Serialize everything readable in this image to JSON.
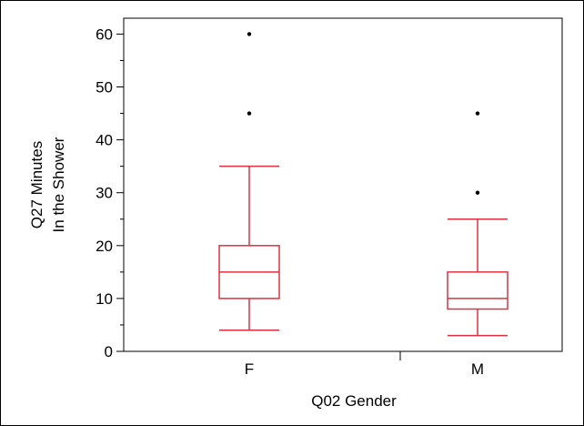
{
  "chart_data": {
    "type": "box",
    "title": "",
    "xlabel": "Q02 Gender",
    "ylabel_lines": [
      "Q27 Minutes",
      "In the Shower"
    ],
    "categories": [
      "F",
      "M"
    ],
    "y_ticks": [
      0,
      10,
      20,
      30,
      40,
      50,
      60
    ],
    "ylim": [
      0,
      63
    ],
    "grid": false,
    "colors": {
      "box": "#e0303f",
      "outlier": "#000000",
      "axis": "#000000"
    },
    "boxes": [
      {
        "category": "F",
        "whisker_low": 4,
        "q1": 10,
        "median": 15,
        "q3": 20,
        "whisker_high": 35,
        "outliers": [
          45,
          60
        ]
      },
      {
        "category": "M",
        "whisker_low": 3,
        "q1": 8,
        "median": 10,
        "q3": 15,
        "whisker_high": 25,
        "outliers": [
          30,
          45
        ]
      }
    ]
  }
}
